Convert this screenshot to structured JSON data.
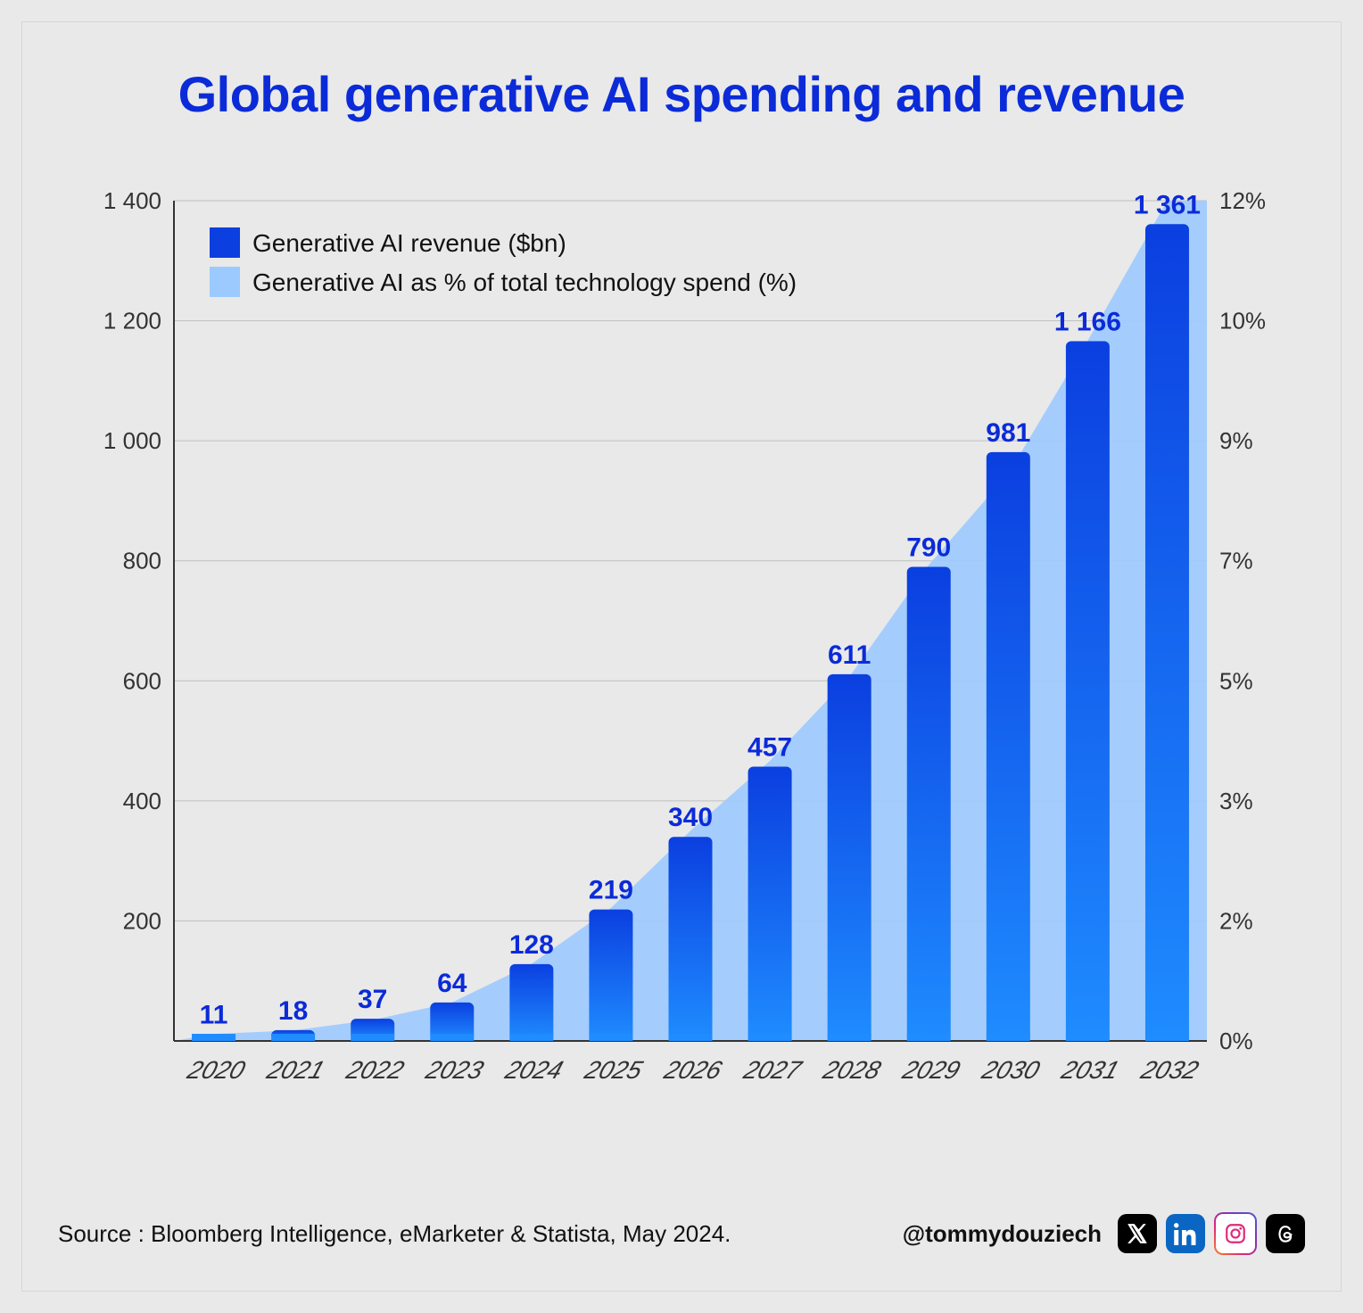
{
  "title": "Global generative AI spending and revenue",
  "chart": {
    "type": "bar+area",
    "categories": [
      "2020",
      "2021",
      "2022",
      "2023",
      "2024",
      "2025",
      "2026",
      "2027",
      "2028",
      "2029",
      "2030",
      "2031",
      "2032"
    ],
    "bar_values": [
      11,
      18,
      37,
      64,
      128,
      219,
      340,
      457,
      611,
      790,
      981,
      1166,
      1361
    ],
    "bar_labels": [
      "11",
      "18",
      "37",
      "64",
      "128",
      "219",
      "340",
      "457",
      "611",
      "790",
      "981",
      "1 166",
      "1 361"
    ],
    "area_values_pct": [
      0.1,
      0.15,
      0.3,
      0.55,
      1.1,
      1.9,
      3.0,
      4.0,
      5.2,
      6.8,
      8.1,
      10.0,
      12.0
    ],
    "left_axis": {
      "min": 0,
      "max": 1400,
      "ticks": [
        200,
        400,
        600,
        800,
        1000,
        1200,
        1400
      ],
      "tick_labels": [
        "200",
        "400",
        "600",
        "800",
        "1 000",
        "1 200",
        "1 400"
      ]
    },
    "right_axis": {
      "min": 0,
      "max": 12,
      "ticks": [
        0,
        2,
        3,
        5,
        7,
        9,
        10,
        12
      ],
      "tick_labels": [
        "0%",
        "2%",
        "3%",
        "5%",
        "7%",
        "9%",
        "10%",
        "12%"
      ]
    },
    "bar_gradient_top": "#0b3fe0",
    "bar_gradient_bottom": "#1f8cff",
    "area_color": "#9ccaff",
    "area_opacity": 0.9,
    "grid_color": "#bfbfbf",
    "axis_color": "#333333",
    "background_color": "#e9e9e9",
    "bar_width_ratio": 0.55,
    "label_color": "#0b2bd8",
    "label_fontsize": 30,
    "tick_fontsize": 26,
    "xlabel_fontsize": 28,
    "xlabel_skew_deg": -18
  },
  "legend": {
    "items": [
      {
        "swatch": "#0b3fe0",
        "label": "Generative AI revenue ($bn)"
      },
      {
        "swatch": "#9ccaff",
        "label": "Generative AI as % of total technology spend (%)"
      }
    ],
    "fontsize": 28,
    "text_color": "#111111"
  },
  "footer": {
    "source": "Source : Bloomberg Intelligence, eMarketer & Statista, May 2024.",
    "handle": "@tommydouziech"
  },
  "socials": {
    "x_bg": "#000000",
    "x_fg": "#ffffff",
    "li_bg": "#0a66c2",
    "li_fg": "#ffffff",
    "ig_border_colors": [
      "#f58529",
      "#dd2a7b",
      "#8134af",
      "#515bd4"
    ],
    "ig_fg": "#dd2a7b",
    "th_bg": "#000000",
    "th_fg": "#ffffff"
  }
}
